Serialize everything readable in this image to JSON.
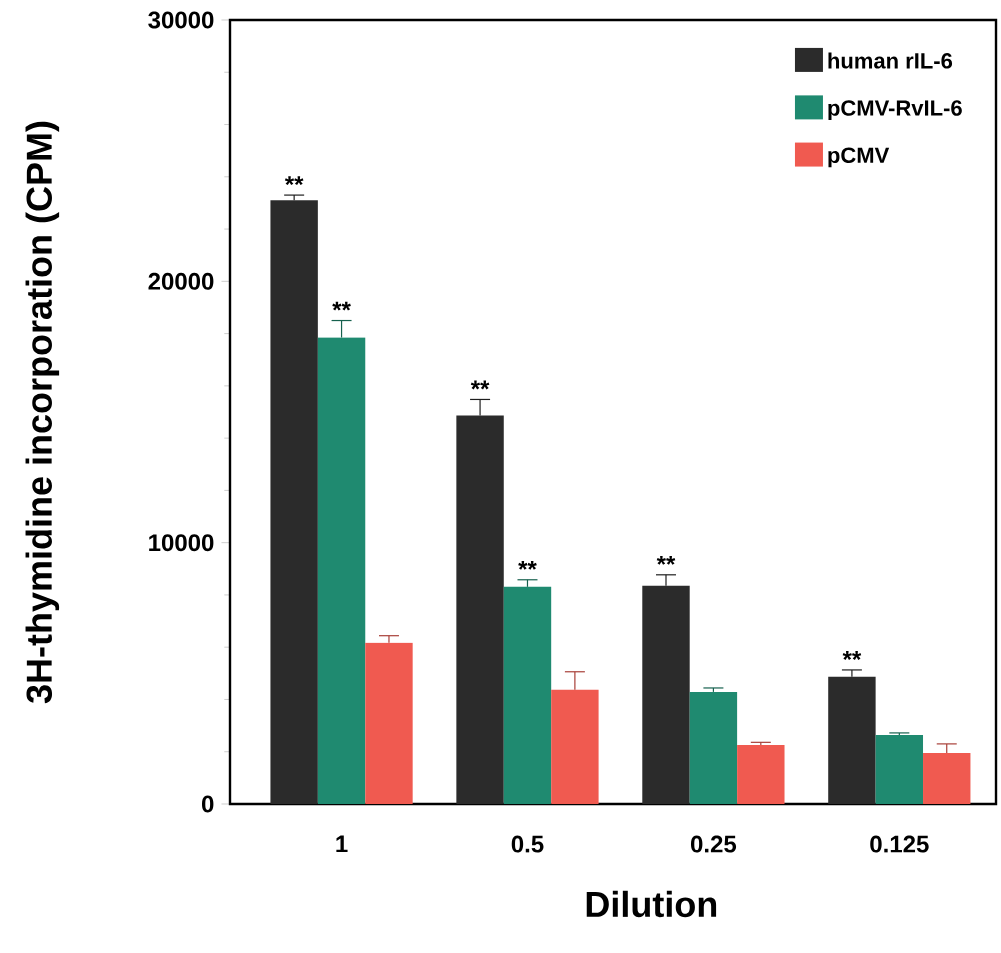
{
  "chart_data": {
    "type": "bar",
    "xlabel": "Dilution",
    "ylabel": "3H-thymidine incorporation (CPM)",
    "categories": [
      "1",
      "0.5",
      "0.25",
      "0.125"
    ],
    "series": [
      {
        "name": "human rIL-6",
        "color": "#2b2b2b",
        "values": [
          23100,
          14870,
          8350,
          4870
        ],
        "errors": [
          200,
          610,
          420,
          260
        ],
        "value_labels": [
          "**",
          "**",
          "**",
          "**"
        ]
      },
      {
        "name": "pCMV-RvIL-6",
        "color": "#1f8a70",
        "values": [
          17850,
          8310,
          4290,
          2640
        ],
        "errors": [
          650,
          270,
          150,
          80
        ],
        "value_labels": [
          "**",
          "**",
          null,
          null
        ]
      },
      {
        "name": "pCMV",
        "color": "#f05a50",
        "values": [
          6170,
          4370,
          2260,
          1950
        ],
        "errors": [
          270,
          690,
          100,
          350
        ],
        "value_labels": [
          null,
          null,
          null,
          null
        ]
      }
    ],
    "ylim": [
      0,
      30000
    ],
    "yticks": [
      0,
      10000,
      20000,
      30000
    ],
    "legend": "top right"
  }
}
